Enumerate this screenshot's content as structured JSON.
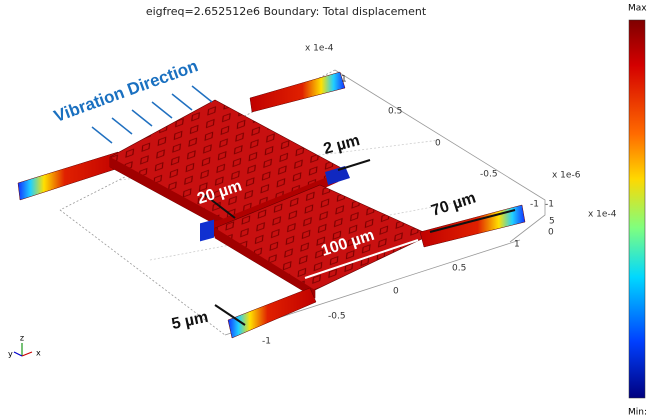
{
  "title": "eigfreq=2.652512e6 Boundary: Total displacement",
  "axes": {
    "back_scale": "x 1e-4",
    "side_scale": "x 1e-6",
    "front_scale": "x 1e-4",
    "back_ticks": [
      "1",
      "0.5",
      "0",
      "-0.5",
      "-1"
    ],
    "front_ticks": [
      "1",
      "0.5",
      "0",
      "-0.5",
      "-1"
    ],
    "side_ticks": [
      "-1",
      "0",
      "5"
    ]
  },
  "annotations": {
    "vibration": "Vibration Direction",
    "gap": "2 µm",
    "neck": "20 µm",
    "beam_length": "70 µm",
    "plate_length": "100 µm",
    "beam_width": "5 µm"
  },
  "colorbar": {
    "max_label": "Max",
    "min_label": "Min:"
  },
  "triad": {
    "x": "x",
    "y": "y",
    "z": "z"
  }
}
